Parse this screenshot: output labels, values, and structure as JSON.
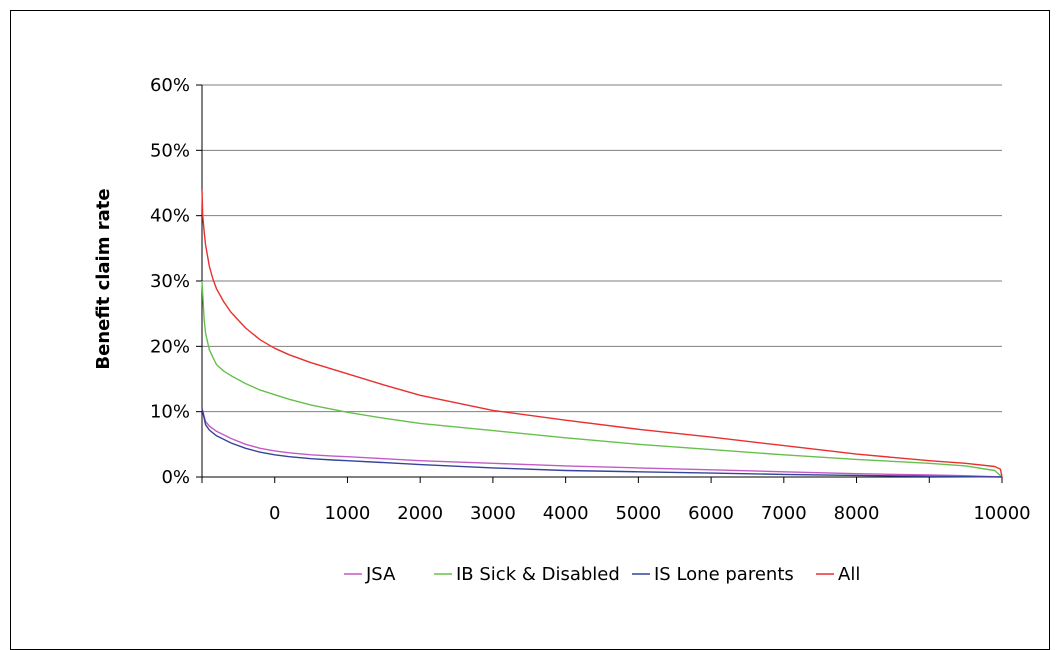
{
  "chart_data": {
    "type": "line",
    "title": "",
    "xlabel": "",
    "ylabel": "Benefit claim rate",
    "xlim": [
      -1000,
      10000
    ],
    "ylim": [
      0,
      60
    ],
    "x_ticks": [
      "0",
      "1000",
      "2000",
      "3000",
      "4000",
      "5000",
      "6000",
      "7000",
      "8000",
      "10000"
    ],
    "y_ticks": [
      "0%",
      "10%",
      "20%",
      "30%",
      "40%",
      "50%",
      "60%"
    ],
    "grid": true,
    "legend_position": "bottom",
    "series": [
      {
        "name": "JSA",
        "color": "#c45bc4",
        "x": [
          -1000,
          -950,
          -900,
          -800,
          -600,
          -400,
          -200,
          0,
          200,
          500,
          800,
          1000,
          1500,
          2000,
          3000,
          4000,
          5000,
          6000,
          7000,
          8000,
          9000,
          9500,
          9900,
          10000
        ],
        "y": [
          10.5,
          8.5,
          7.8,
          7.0,
          5.9,
          5.0,
          4.4,
          4.0,
          3.7,
          3.4,
          3.2,
          3.1,
          2.8,
          2.5,
          2.1,
          1.7,
          1.4,
          1.1,
          0.8,
          0.5,
          0.3,
          0.2,
          0.05,
          0
        ]
      },
      {
        "name": "IB Sick & Disabled",
        "color": "#66c04d",
        "x": [
          -1000,
          -970,
          -950,
          -900,
          -850,
          -800,
          -700,
          -600,
          -400,
          -200,
          0,
          200,
          500,
          1000,
          1500,
          2000,
          3000,
          4000,
          5000,
          6000,
          7000,
          8000,
          9000,
          9500,
          9900,
          10000
        ],
        "y": [
          30,
          24,
          22,
          19.5,
          18.3,
          17.2,
          16.2,
          15.5,
          14.3,
          13.3,
          12.6,
          11.9,
          11.0,
          9.9,
          9.0,
          8.2,
          7.1,
          6.0,
          5.0,
          4.2,
          3.4,
          2.7,
          2.1,
          1.7,
          1.0,
          0
        ]
      },
      {
        "name": "IS Lone parents",
        "color": "#35449a",
        "x": [
          -1000,
          -950,
          -900,
          -800,
          -600,
          -400,
          -200,
          0,
          200,
          500,
          800,
          1000,
          1500,
          2000,
          3000,
          4000,
          5000,
          6000,
          7000,
          8000,
          9000,
          9500,
          9900,
          10000
        ],
        "y": [
          10.5,
          8.0,
          7.2,
          6.3,
          5.2,
          4.4,
          3.8,
          3.4,
          3.1,
          2.8,
          2.6,
          2.5,
          2.2,
          1.9,
          1.4,
          1.0,
          0.8,
          0.6,
          0.4,
          0.25,
          0.1,
          0.05,
          0.02,
          0
        ]
      },
      {
        "name": "All",
        "color": "#e8302e",
        "x": [
          -1000,
          -990,
          -970,
          -950,
          -900,
          -850,
          -800,
          -700,
          -600,
          -400,
          -200,
          0,
          200,
          500,
          1000,
          1500,
          2000,
          3000,
          4000,
          5000,
          6000,
          7000,
          8000,
          9000,
          9500,
          9900,
          9980,
          10000
        ],
        "y": [
          44,
          40,
          37.5,
          35.5,
          32.3,
          30.3,
          28.8,
          26.8,
          25.2,
          22.8,
          21.0,
          19.7,
          18.7,
          17.5,
          15.8,
          14.1,
          12.5,
          10.2,
          8.7,
          7.3,
          6.1,
          4.8,
          3.5,
          2.5,
          2.1,
          1.6,
          1.2,
          0
        ]
      }
    ]
  }
}
